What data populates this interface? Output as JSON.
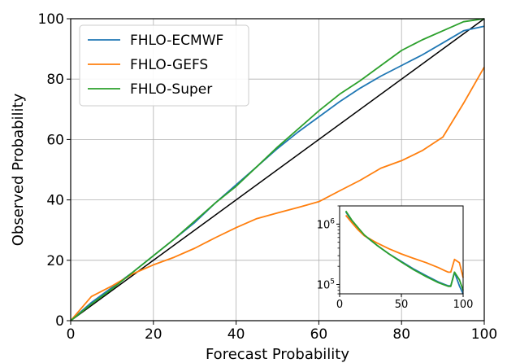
{
  "chart_data": [
    {
      "type": "line",
      "xlabel": "Forecast Probability",
      "ylabel": "Observed Probability",
      "xlim": [
        0,
        100
      ],
      "ylim": [
        0,
        100
      ],
      "xticks": [
        0,
        20,
        40,
        60,
        80,
        100
      ],
      "yticks": [
        0,
        20,
        40,
        60,
        80,
        100
      ],
      "grid": true,
      "legend_position": "top-left",
      "reference_line": {
        "x": [
          0,
          100
        ],
        "y": [
          0,
          100
        ],
        "color": "#000000"
      },
      "series": [
        {
          "name": "FHLO-ECMWF",
          "color": "#1f77b4",
          "x": [
            0,
            5,
            10,
            15,
            20,
            25,
            30,
            35,
            40,
            45,
            50,
            55,
            60,
            65,
            70,
            75,
            80,
            85,
            90,
            95,
            100
          ],
          "y": [
            0,
            6,
            11,
            16,
            21.5,
            27,
            32.5,
            39,
            45,
            51,
            57,
            62.5,
            67.5,
            72.5,
            77,
            81,
            84.5,
            88,
            92,
            96,
            97.5
          ]
        },
        {
          "name": "FHLO-GEFS",
          "color": "#ff7f0e",
          "x": [
            0,
            5,
            10,
            15,
            20,
            25,
            30,
            35,
            40,
            45,
            50,
            55,
            60,
            65,
            70,
            75,
            80,
            85,
            90,
            95,
            100
          ],
          "y": [
            0,
            8,
            11.5,
            15.5,
            18.5,
            21,
            24,
            27.5,
            30.8,
            33.8,
            35.7,
            37.5,
            39.4,
            43,
            46.5,
            50.5,
            53,
            56.3,
            60.8,
            72,
            84
          ]
        },
        {
          "name": "FHLO-Super",
          "color": "#2ca02c",
          "x": [
            0,
            5,
            10,
            15,
            20,
            25,
            30,
            35,
            40,
            45,
            50,
            55,
            60,
            65,
            70,
            75,
            80,
            85,
            90,
            95,
            100
          ],
          "y": [
            0,
            5.5,
            10.5,
            16,
            21.5,
            27,
            33,
            39,
            44.5,
            51,
            57.5,
            63.5,
            69.5,
            75,
            79.5,
            84.5,
            89.5,
            93,
            96,
            99,
            100
          ]
        }
      ]
    },
    {
      "type": "line",
      "xlim": [
        0,
        100
      ],
      "ylim": [
        70000,
        2000000
      ],
      "yscale": "log",
      "xticks": [
        0,
        50,
        100
      ],
      "yticks": [
        100000,
        1000000
      ],
      "ytick_labels": [
        {
          "base": "10",
          "exp": "5"
        },
        {
          "base": "10",
          "exp": "6"
        }
      ],
      "grid": false,
      "series": [
        {
          "name": "FHLO-ECMWF",
          "color": "#1f77b4",
          "x": [
            5,
            10,
            15,
            20,
            30,
            40,
            50,
            60,
            70,
            80,
            85,
            88,
            90,
            93,
            97,
            100
          ],
          "y": [
            1600000,
            1100000,
            850000,
            650000,
            450000,
            320000,
            240000,
            180000,
            140000,
            110000,
            100000,
            95000,
            95000,
            160000,
            95000,
            70000
          ]
        },
        {
          "name": "FHLO-GEFS",
          "color": "#ff7f0e",
          "x": [
            5,
            10,
            15,
            20,
            30,
            40,
            50,
            60,
            70,
            80,
            85,
            88,
            90,
            93,
            97,
            100
          ],
          "y": [
            1400000,
            1050000,
            800000,
            640000,
            490000,
            390000,
            320000,
            270000,
            230000,
            190000,
            170000,
            160000,
            160000,
            260000,
            230000,
            130000
          ]
        },
        {
          "name": "FHLO-Super",
          "color": "#2ca02c",
          "x": [
            5,
            10,
            15,
            20,
            30,
            40,
            50,
            60,
            70,
            80,
            85,
            88,
            90,
            93,
            97,
            100
          ],
          "y": [
            1650000,
            1150000,
            870000,
            660000,
            450000,
            320000,
            235000,
            175000,
            135000,
            107000,
            98000,
            93000,
            93000,
            160000,
            120000,
            80000
          ]
        }
      ]
    }
  ]
}
